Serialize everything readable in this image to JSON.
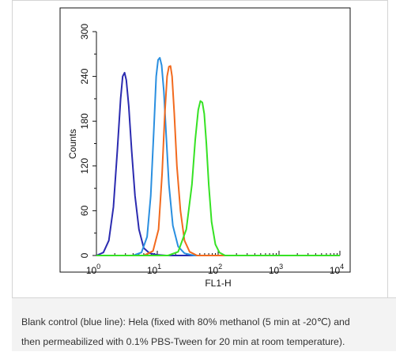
{
  "chart_data": {
    "type": "line",
    "xlabel": "FL1-H",
    "ylabel": "Counts",
    "x_scale": "log",
    "xlim": [
      1,
      10000
    ],
    "ylim": [
      0,
      300
    ],
    "grid": false,
    "x_ticks": [
      {
        "value": 1,
        "base": "10",
        "exp": "0"
      },
      {
        "value": 10,
        "base": "10",
        "exp": "1"
      },
      {
        "value": 100,
        "base": "10",
        "exp": "2"
      },
      {
        "value": 1000,
        "base": "10",
        "exp": "3"
      },
      {
        "value": 10000,
        "base": "10",
        "exp": "4"
      }
    ],
    "y_ticks": [
      0,
      60,
      120,
      180,
      240,
      300
    ],
    "series": [
      {
        "color": "#2b2bb0",
        "x": [
          1,
          1.3,
          1.6,
          1.9,
          2.2,
          2.5,
          2.7,
          2.9,
          3.1,
          3.4,
          3.8,
          4.3,
          5.0,
          6.0,
          7.5,
          10,
          14
        ],
        "y": [
          0,
          4,
          20,
          65,
          140,
          210,
          240,
          245,
          235,
          200,
          140,
          80,
          35,
          10,
          3,
          1,
          0
        ]
      },
      {
        "color": "#2a8fe0",
        "x": [
          4,
          5.5,
          6.8,
          7.8,
          8.8,
          9.6,
          10.3,
          11,
          11.8,
          12.8,
          14,
          15.5,
          18,
          22,
          28,
          40
        ],
        "y": [
          0,
          4,
          25,
          80,
          170,
          240,
          262,
          265,
          255,
          220,
          160,
          95,
          40,
          12,
          3,
          0
        ]
      },
      {
        "color": "#f26a1e",
        "x": [
          6,
          8.5,
          10.5,
          12,
          13.3,
          14.5,
          15.5,
          16.5,
          17.5,
          19,
          21,
          24,
          28,
          34,
          45
        ],
        "y": [
          0,
          6,
          35,
          110,
          190,
          240,
          253,
          254,
          240,
          190,
          120,
          60,
          20,
          5,
          0
        ]
      },
      {
        "color": "#36e224",
        "x": [
          15,
          22,
          30,
          37,
          42,
          47,
          51,
          55,
          59,
          64,
          70,
          78,
          90,
          105,
          130
        ],
        "y": [
          0,
          5,
          35,
          95,
          155,
          195,
          207,
          205,
          190,
          150,
          95,
          45,
          15,
          4,
          0
        ]
      }
    ]
  },
  "caption": {
    "line1": "Blank control (blue line): Hela (fixed with 80% methanol (5 min at -20℃) and",
    "line2": "then permeabilized with 0.1% PBS-Tween for 20 min at room temperature)."
  }
}
